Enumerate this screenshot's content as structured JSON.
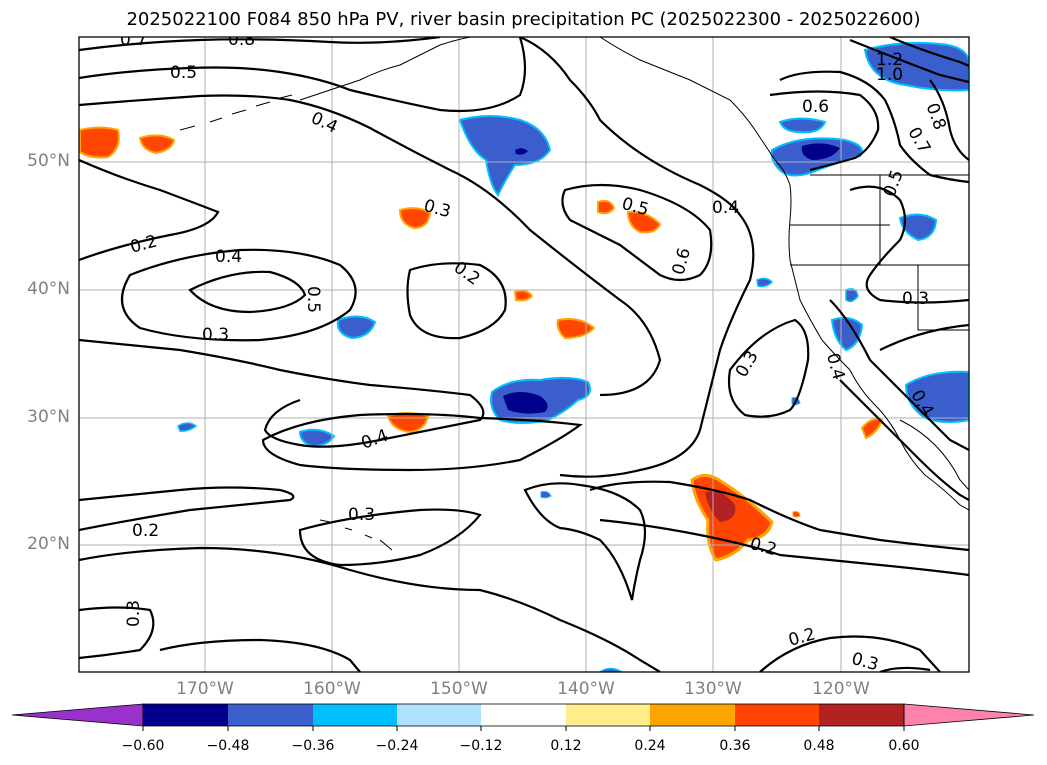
{
  "title": "2025022100 F084 850 hPa PV, river basin precipitation PC (2025022300 - 2025022600)",
  "lat_labels": [
    "50°N",
    "40°N",
    "30°N",
    "20°N"
  ],
  "lon_labels": [
    "170°W",
    "160°W",
    "150°W",
    "140°W",
    "130°W",
    "120°W"
  ],
  "contour_labels": [
    "0.7",
    "0.8",
    "0.5",
    "0.4",
    "0.3",
    "0.2",
    "0.4",
    "0.5",
    "0.3",
    "0.2",
    "0.5",
    "0.4",
    "0.6",
    "0.3",
    "0.4",
    "0.3",
    "0.2",
    "0.2",
    "0.2",
    "0.3",
    "0.6",
    "1.2",
    "1.0",
    "0.8",
    "0.7",
    "0.5",
    "0.3",
    "0.4",
    "0.4",
    "0.3",
    "0.2"
  ],
  "colorbar": {
    "ticks": [
      "−0.60",
      "−0.48",
      "−0.36",
      "−0.24",
      "−0.12",
      "0.12",
      "0.24",
      "0.36",
      "0.48",
      "0.60"
    ],
    "colors": [
      "#9932CC",
      "#00008B",
      "#3A5FCD",
      "#00BFFF",
      "#B0E2FF",
      "#FFFFFF",
      "#FFEC8B",
      "#FFA500",
      "#FF4500",
      "#B22222",
      "#FF82AB"
    ]
  }
}
